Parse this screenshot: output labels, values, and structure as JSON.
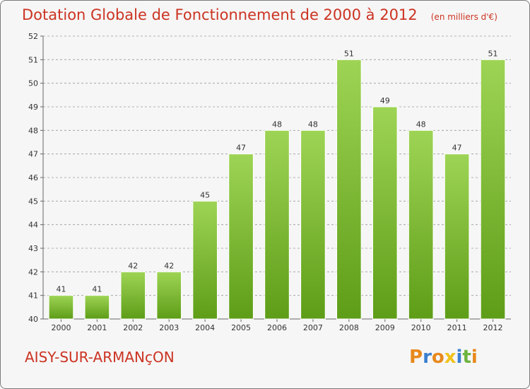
{
  "title": "Dotation Globale de Fonctionnement de 2000 à 2012",
  "subtitle": "(en milliers d'€)",
  "commune": "AISY-SUR-ARMANçON",
  "logo": {
    "text": "Proxiti",
    "letters": [
      {
        "ch": "P",
        "color": "#e8891c"
      },
      {
        "ch": "r",
        "color": "#3a7fd0"
      },
      {
        "ch": "o",
        "color": "#e8891c"
      },
      {
        "ch": "x",
        "color": "#f0c21b"
      },
      {
        "ch": "i",
        "color": "#3a7fd0"
      },
      {
        "ch": "t",
        "color": "#6db33f"
      },
      {
        "ch": "i",
        "color": "#e8891c"
      }
    ]
  },
  "colors": {
    "bar_top": "#9ed455",
    "bar_bottom": "#5e9d17",
    "title": "#cc3322",
    "grid": "#9a9a9a"
  },
  "chart_data": {
    "type": "bar",
    "title": "Dotation Globale de Fonctionnement de 2000 à 2012",
    "subtitle": "(en milliers d'€)",
    "xlabel": "",
    "ylabel": "",
    "categories": [
      "2000",
      "2001",
      "2002",
      "2003",
      "2004",
      "2005",
      "2006",
      "2007",
      "2008",
      "2009",
      "2010",
      "2011",
      "2012"
    ],
    "values": [
      41,
      41,
      42,
      42,
      45,
      47,
      48,
      48,
      51,
      49,
      48,
      47,
      51
    ],
    "ylim": [
      40,
      52
    ],
    "yticks": [
      "40",
      "41",
      "42",
      "43",
      "44",
      "45",
      "46",
      "47",
      "48",
      "49",
      "50",
      "51",
      "52"
    ],
    "grid": true
  }
}
